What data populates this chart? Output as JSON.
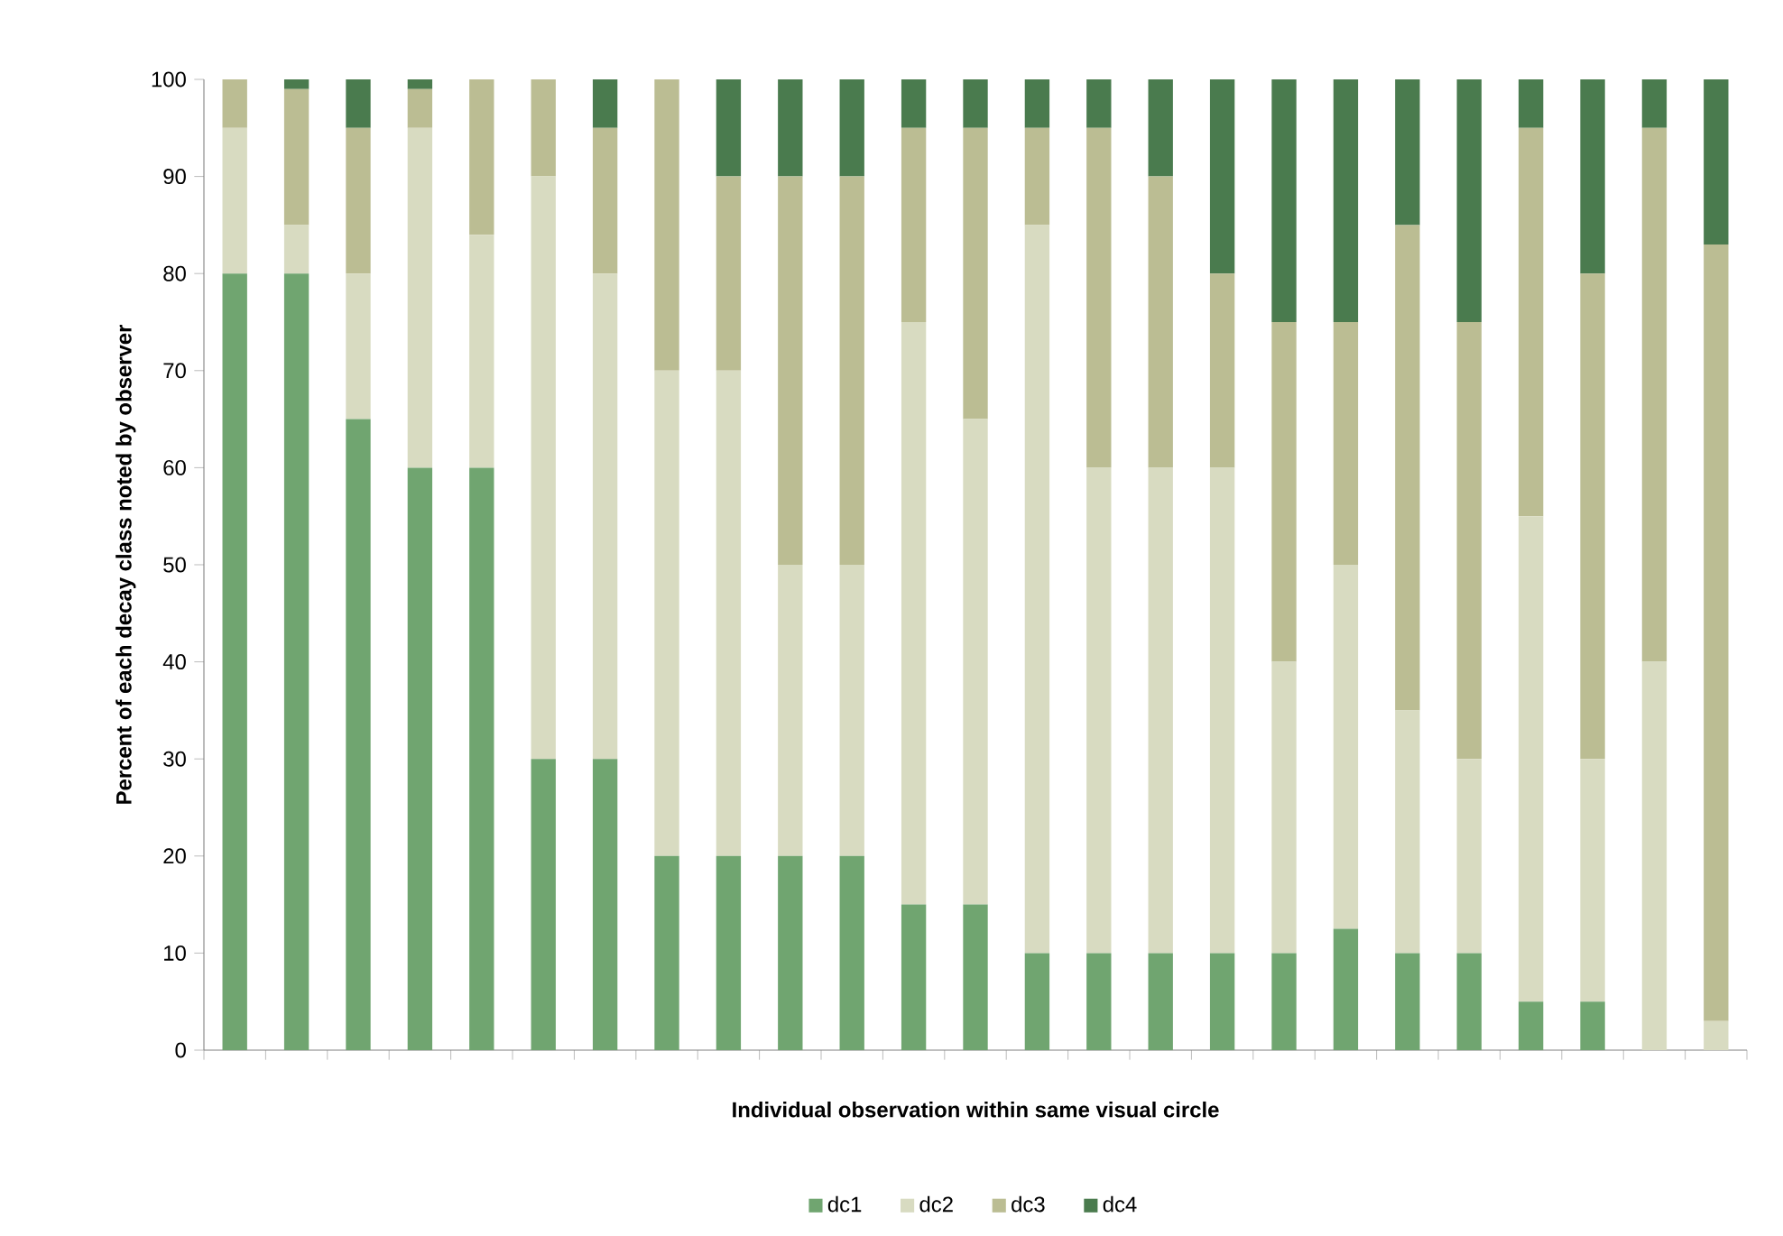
{
  "chart_data": {
    "type": "bar",
    "stacked": true,
    "xlabel": "Individual observation within same visual circle",
    "ylabel": "Percent of each decay class noted by observer",
    "categories": [
      null,
      null,
      null,
      null,
      null,
      null,
      null,
      null,
      null,
      null,
      null,
      null,
      null,
      null,
      null,
      null,
      null,
      null,
      null,
      null,
      null,
      null,
      null,
      null,
      null
    ],
    "series": [
      {
        "name": "dc1",
        "color": "#70a570",
        "values": [
          80,
          80,
          65,
          60,
          60,
          30,
          30,
          20,
          20,
          20,
          20,
          15,
          15,
          10,
          10,
          10,
          10,
          10,
          12.5,
          10,
          10,
          5,
          5,
          0,
          0
        ]
      },
      {
        "name": "dc2",
        "color": "#d8dbc1",
        "values": [
          15,
          5,
          15,
          35,
          24,
          60,
          50,
          50,
          50,
          30,
          30,
          60,
          50,
          75,
          50,
          50,
          50,
          30,
          37.5,
          25,
          20,
          50,
          25,
          40,
          3
        ]
      },
      {
        "name": "dc3",
        "color": "#bbbd93",
        "values": [
          5,
          14,
          15,
          4,
          16,
          10,
          15,
          30,
          20,
          40,
          40,
          20,
          30,
          10,
          35,
          30,
          20,
          35,
          25,
          50,
          45,
          40,
          50,
          55,
          80
        ]
      },
      {
        "name": "dc4",
        "color": "#4a7b4e",
        "values": [
          0,
          1,
          5,
          1,
          0,
          0,
          5,
          0,
          10,
          10,
          10,
          5,
          5,
          5,
          5,
          10,
          20,
          25,
          25,
          15,
          25,
          5,
          20,
          5,
          17
        ]
      }
    ],
    "ylim": [
      0,
      100
    ],
    "yticks": [
      0,
      10,
      20,
      30,
      40,
      50,
      60,
      70,
      80,
      90,
      100
    ],
    "grid": false,
    "legend": "bottom"
  }
}
